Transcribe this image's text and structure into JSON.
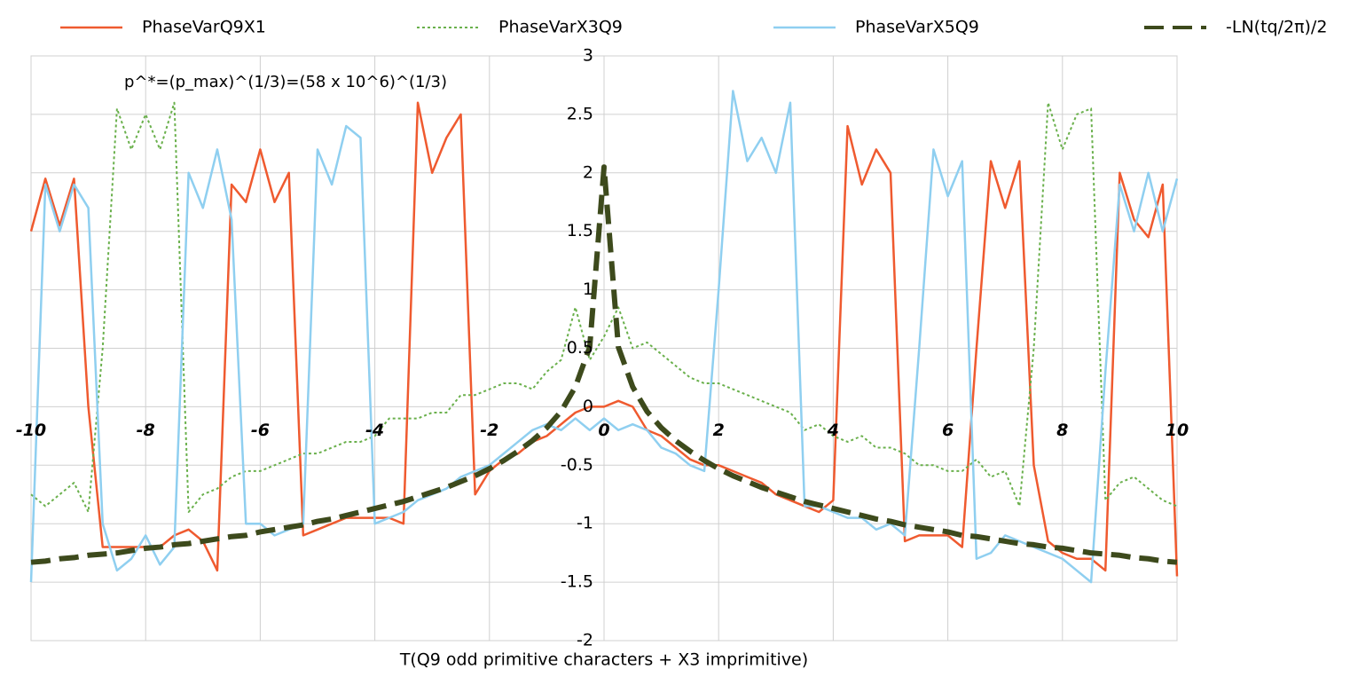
{
  "chart_data": {
    "type": "line",
    "annotation": "p^*=(p_max)^(1/3)=(58  x  10^6)^(1/3)",
    "x_label": "T(Q9 odd primitive characters + X3 imprimitive)",
    "xlim": [
      -10,
      10
    ],
    "ylim": [
      -2,
      3
    ],
    "xticks": [
      -10,
      -8,
      -6,
      -4,
      -2,
      0,
      2,
      4,
      6,
      8,
      10
    ],
    "yticks": [
      3,
      2.5,
      2,
      1.5,
      1,
      0.5,
      0,
      -0.5,
      -1,
      -1.5,
      -2
    ],
    "grid": true,
    "x": [
      -10,
      -9.75,
      -9.5,
      -9.25,
      -9,
      -8.75,
      -8.5,
      -8.25,
      -8,
      -7.75,
      -7.5,
      -7.25,
      -7,
      -6.75,
      -6.5,
      -6.25,
      -6,
      -5.75,
      -5.5,
      -5.25,
      -5,
      -4.75,
      -4.5,
      -4.25,
      -4,
      -3.75,
      -3.5,
      -3.25,
      -3,
      -2.75,
      -2.5,
      -2.25,
      -2,
      -1.75,
      -1.5,
      -1.25,
      -1,
      -0.75,
      -0.5,
      -0.25,
      0,
      0.25,
      0.5,
      0.75,
      1,
      1.25,
      1.5,
      1.75,
      2,
      2.25,
      2.5,
      2.75,
      3,
      3.25,
      3.5,
      3.75,
      4,
      4.25,
      4.5,
      4.75,
      5,
      5.25,
      5.5,
      5.75,
      6,
      6.25,
      6.5,
      6.75,
      7,
      7.25,
      7.5,
      7.75,
      8,
      8.25,
      8.5,
      8.75,
      9,
      9.25,
      9.5,
      9.75,
      10
    ],
    "series": [
      {
        "name": "PhaseVarQ9X1",
        "color": "#ef5a2f",
        "dash": "solid",
        "width": 2.5,
        "values": [
          1.5,
          1.95,
          1.55,
          1.95,
          0.0,
          -1.2,
          -1.2,
          -1.2,
          -1.2,
          -1.2,
          -1.1,
          -1.05,
          -1.15,
          -1.4,
          1.9,
          1.75,
          2.2,
          1.75,
          2.0,
          -1.1,
          -1.05,
          -1.0,
          -0.95,
          -0.95,
          -0.95,
          -0.95,
          -1.0,
          2.6,
          2.0,
          2.3,
          2.5,
          -0.75,
          -0.55,
          -0.45,
          -0.4,
          -0.3,
          -0.25,
          -0.15,
          -0.05,
          0.0,
          0.0,
          0.05,
          0.0,
          -0.2,
          -0.25,
          -0.35,
          -0.45,
          -0.5,
          -0.5,
          -0.55,
          -0.6,
          -0.65,
          -0.75,
          -0.8,
          -0.85,
          -0.9,
          -0.8,
          2.4,
          1.9,
          2.2,
          2.0,
          -1.15,
          -1.1,
          -1.1,
          -1.1,
          -1.2,
          0.5,
          2.1,
          1.7,
          2.1,
          -0.5,
          -1.15,
          -1.25,
          -1.3,
          -1.3,
          -1.4,
          2.0,
          1.6,
          1.45,
          1.9,
          -1.45
        ]
      },
      {
        "name": "PhaseVarX3Q9",
        "color": "#6ab04c",
        "dash": "dotted",
        "width": 2,
        "values": [
          -0.75,
          -0.85,
          -0.75,
          -0.65,
          -0.9,
          0.5,
          2.55,
          2.2,
          2.5,
          2.2,
          2.6,
          -0.9,
          -0.75,
          -0.7,
          -0.6,
          -0.55,
          -0.55,
          -0.5,
          -0.45,
          -0.4,
          -0.4,
          -0.35,
          -0.3,
          -0.3,
          -0.25,
          -0.1,
          -0.1,
          -0.1,
          -0.05,
          -0.05,
          0.1,
          0.1,
          0.15,
          0.2,
          0.2,
          0.15,
          0.3,
          0.4,
          0.85,
          0.4,
          0.6,
          0.85,
          0.5,
          0.55,
          0.45,
          0.35,
          0.25,
          0.2,
          0.2,
          0.15,
          0.1,
          0.05,
          0.0,
          -0.05,
          -0.2,
          -0.15,
          -0.25,
          -0.3,
          -0.25,
          -0.35,
          -0.35,
          -0.4,
          -0.5,
          -0.5,
          -0.55,
          -0.55,
          -0.45,
          -0.6,
          -0.55,
          -0.85,
          0.5,
          2.6,
          2.2,
          2.5,
          2.55,
          -0.8,
          -0.65,
          -0.6,
          -0.7,
          -0.8,
          -0.85
        ]
      },
      {
        "name": "PhaseVarX5Q9",
        "color": "#8fcff0",
        "dash": "solid",
        "width": 2.5,
        "values": [
          -1.5,
          1.9,
          1.5,
          1.9,
          1.7,
          -1.0,
          -1.4,
          -1.3,
          -1.1,
          -1.35,
          -1.2,
          2.0,
          1.7,
          2.2,
          1.6,
          -1.0,
          -1.0,
          -1.1,
          -1.05,
          -1.0,
          2.2,
          1.9,
          2.4,
          2.3,
          -1.0,
          -0.95,
          -0.9,
          -0.8,
          -0.75,
          -0.7,
          -0.6,
          -0.55,
          -0.5,
          -0.4,
          -0.3,
          -0.2,
          -0.15,
          -0.2,
          -0.1,
          -0.2,
          -0.1,
          -0.2,
          -0.15,
          -0.2,
          -0.35,
          -0.4,
          -0.5,
          -0.55,
          1.0,
          2.7,
          2.1,
          2.3,
          2.0,
          2.6,
          -0.85,
          -0.85,
          -0.9,
          -0.95,
          -0.95,
          -1.05,
          -1.0,
          -1.1,
          0.5,
          2.2,
          1.8,
          2.1,
          -1.3,
          -1.25,
          -1.1,
          -1.15,
          -1.2,
          -1.25,
          -1.3,
          -1.4,
          -1.5,
          0.3,
          1.9,
          1.5,
          2.0,
          1.5,
          1.95
        ]
      },
      {
        "name": "-LN(tq/2π)/2",
        "color": "#3d4a1c",
        "dash": "dashed",
        "width": 6,
        "values": [
          -1.33,
          -1.32,
          -1.3,
          -1.29,
          -1.27,
          -1.26,
          -1.25,
          -1.23,
          -1.21,
          -1.2,
          -1.18,
          -1.17,
          -1.15,
          -1.13,
          -1.11,
          -1.1,
          -1.07,
          -1.05,
          -1.03,
          -1.01,
          -0.98,
          -0.96,
          -0.93,
          -0.9,
          -0.87,
          -0.84,
          -0.81,
          -0.77,
          -0.73,
          -0.69,
          -0.64,
          -0.59,
          -0.53,
          -0.46,
          -0.38,
          -0.29,
          -0.18,
          -0.04,
          0.17,
          0.51,
          2.05,
          0.51,
          0.17,
          -0.04,
          -0.18,
          -0.29,
          -0.38,
          -0.46,
          -0.53,
          -0.59,
          -0.64,
          -0.69,
          -0.73,
          -0.77,
          -0.81,
          -0.84,
          -0.87,
          -0.9,
          -0.93,
          -0.96,
          -0.98,
          -1.01,
          -1.03,
          -1.05,
          -1.07,
          -1.1,
          -1.11,
          -1.13,
          -1.15,
          -1.17,
          -1.18,
          -1.2,
          -1.21,
          -1.23,
          -1.25,
          -1.26,
          -1.27,
          -1.29,
          -1.3,
          -1.32,
          -1.33
        ]
      }
    ]
  }
}
